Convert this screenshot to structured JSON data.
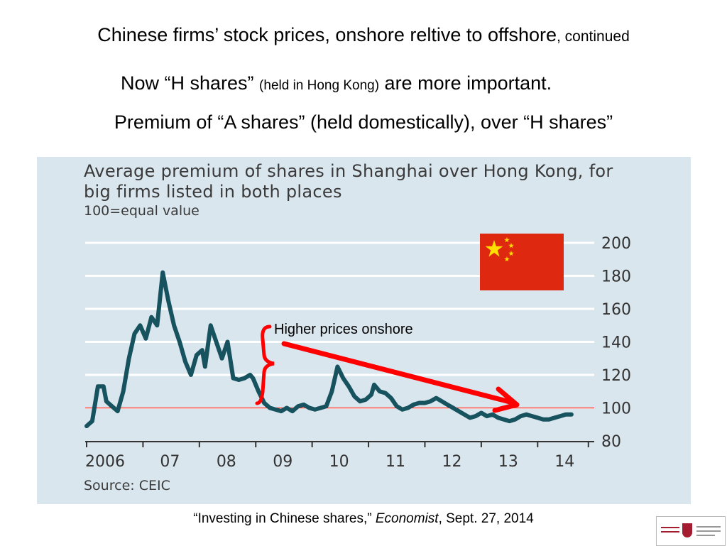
{
  "slide": {
    "title_main": "Chinese firms’ stock prices, onshore reltive to offshore",
    "title_suffix": ", continued",
    "sub1_a": "Now “H shares” ",
    "sub1_b": "(held in Hong Kong)",
    "sub1_c": " are more important.",
    "sub2": "Premium of “A shares” (held domestically), over “H shares”",
    "citation_a": "“Investing in Chinese shares,” ",
    "citation_b": "Economist",
    "citation_c": ", Sept. 27, 2014"
  },
  "annotation": {
    "text": "Higher prices onshore"
  },
  "colors": {
    "panel_bg": "#dae6ee",
    "line": "#17525f",
    "reference_line": "#e8403a",
    "arrow": "#ff0000",
    "flag_red": "#de2910",
    "flag_star": "#ffde00"
  },
  "icons": {
    "flag": "china-flag-icon",
    "logo": "harvard-kennedy-school-logo-icon"
  },
  "chart_data": {
    "type": "line",
    "title": "Average premium of shares in Shanghai over Hong Kong, for big firms listed in both places",
    "subtitle": "100=equal value",
    "source": "Source: CEIC",
    "ylim": [
      80,
      200
    ],
    "yticks": [
      80,
      100,
      120,
      140,
      160,
      180,
      200
    ],
    "ytick_labels": [
      "80",
      "100",
      "120",
      "140",
      "160",
      "180",
      "200"
    ],
    "xlim": [
      2006,
      2014.9
    ],
    "xticks": [
      2006,
      2007,
      2008,
      2009,
      2010,
      2011,
      2012,
      2013,
      2014
    ],
    "xtick_labels": [
      "2006",
      "07",
      "08",
      "09",
      "10",
      "11",
      "12",
      "13",
      "14"
    ],
    "grid": true,
    "reference_line": 100,
    "x": [
      2006.0,
      2006.1,
      2006.2,
      2006.3,
      2006.35,
      2006.45,
      2006.55,
      2006.65,
      2006.75,
      2006.85,
      2006.95,
      2007.05,
      2007.15,
      2007.25,
      2007.35,
      2007.45,
      2007.55,
      2007.65,
      2007.75,
      2007.85,
      2007.95,
      2008.05,
      2008.1,
      2008.2,
      2008.3,
      2008.4,
      2008.5,
      2008.6,
      2008.7,
      2008.8,
      2008.9,
      2008.95,
      2009.05,
      2009.15,
      2009.25,
      2009.35,
      2009.45,
      2009.55,
      2009.65,
      2009.75,
      2009.85,
      2009.95,
      2010.05,
      2010.15,
      2010.25,
      2010.35,
      2010.45,
      2010.55,
      2010.65,
      2010.75,
      2010.85,
      2010.95,
      2011.05,
      2011.1,
      2011.2,
      2011.3,
      2011.4,
      2011.5,
      2011.6,
      2011.7,
      2011.8,
      2011.9,
      2012.0,
      2012.1,
      2012.2,
      2012.3,
      2012.4,
      2012.5,
      2012.6,
      2012.7,
      2012.8,
      2012.9,
      2013.0,
      2013.1,
      2013.2,
      2013.3,
      2013.4,
      2013.5,
      2013.6,
      2013.7,
      2013.8,
      2013.9,
      2014.0,
      2014.1,
      2014.2,
      2014.3,
      2014.4,
      2014.5,
      2014.6
    ],
    "series": [
      {
        "values": [
          89,
          92,
          113,
          113,
          104,
          101,
          98,
          110,
          130,
          145,
          150,
          142,
          155,
          150,
          182,
          165,
          150,
          140,
          128,
          120,
          132,
          135,
          125,
          150,
          140,
          130,
          140,
          118,
          117,
          118,
          120,
          118,
          110,
          103,
          100,
          99,
          98,
          100,
          98,
          101,
          102,
          100,
          99,
          100,
          101,
          110,
          125,
          118,
          113,
          107,
          104,
          105,
          108,
          114,
          110,
          109,
          106,
          101,
          99,
          100,
          102,
          103,
          103,
          104,
          106,
          104,
          102,
          100,
          98,
          96,
          94,
          95,
          97,
          95,
          96,
          94,
          93,
          92,
          93,
          95,
          96,
          95,
          94,
          93,
          93,
          94,
          95,
          96,
          96
        ]
      }
    ]
  }
}
